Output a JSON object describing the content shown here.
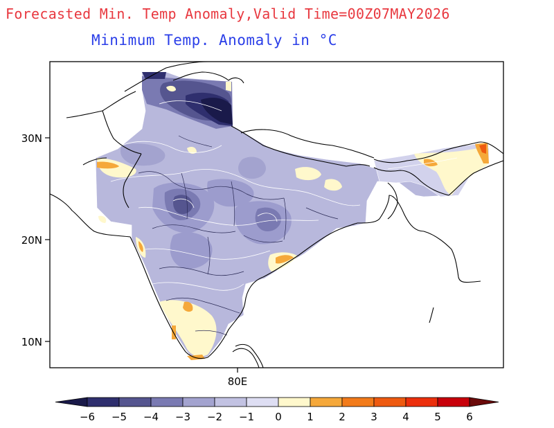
{
  "header": {
    "title": "Forecasted Min. Temp Anomaly,Valid Time=00Z07MAY2026",
    "subtitle_text": "Minimum Temp. Anomaly in ",
    "subtitle_unit": "°C"
  },
  "map": {
    "lat_ticks": [
      "30N",
      "20N",
      "10N"
    ],
    "lon_ticks": [
      "80E"
    ]
  },
  "colorbar": {
    "labels": [
      "−6",
      "−5",
      "−4",
      "−3",
      "−2",
      "−1",
      "0",
      "1",
      "2",
      "3",
      "4",
      "5",
      "6"
    ],
    "low_end_color": "#1a1a4a",
    "high_end_color": "#6b0a0a",
    "colors": [
      "#2f2f6e",
      "#55558f",
      "#7a7ab2",
      "#a3a3cf",
      "#c2c2e2",
      "#dedef3",
      "#fff8cc",
      "#f5a83a",
      "#f27b1a",
      "#ee5a10",
      "#ec2f0c",
      "#c8000a"
    ]
  }
}
